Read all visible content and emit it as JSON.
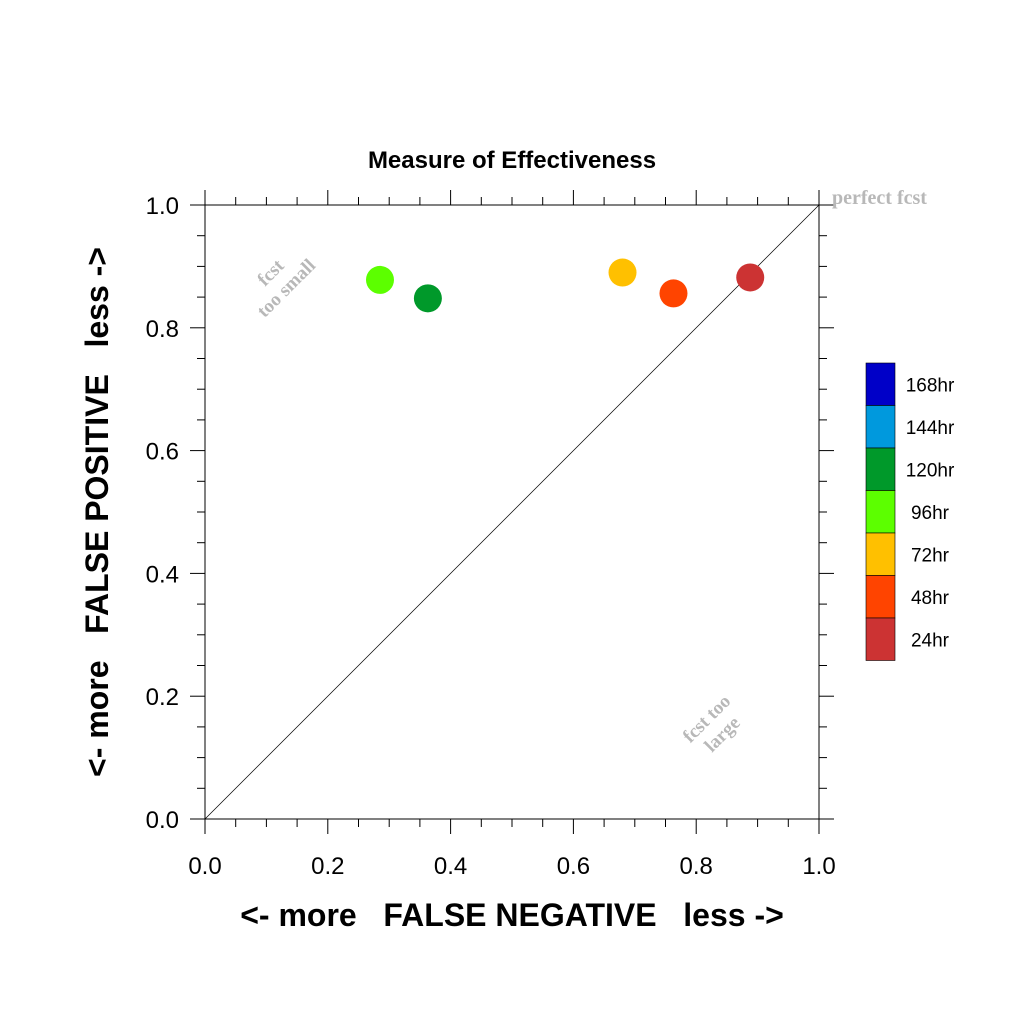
{
  "chart_data": {
    "type": "scatter",
    "title": "Measure of Effectiveness",
    "xlabel": "<- more   FALSE NEGATIVE   less ->",
    "ylabel": "<- more   FALSE POSITIVE   less ->",
    "xlim": [
      0,
      1
    ],
    "ylim": [
      0,
      1
    ],
    "x_ticks": [
      0.0,
      0.2,
      0.4,
      0.6,
      0.8,
      1.0
    ],
    "y_ticks": [
      0.0,
      0.2,
      0.4,
      0.6,
      0.8,
      1.0
    ],
    "x_tick_labels": [
      "0.0",
      "0.2",
      "0.4",
      "0.6",
      "0.8",
      "1.0"
    ],
    "y_tick_labels": [
      "0.0",
      "0.2",
      "0.4",
      "0.6",
      "0.8",
      "1.0"
    ],
    "grid": false,
    "diagonal_reference_line": true,
    "legend_position": "right",
    "legend": [
      {
        "label": "168hr",
        "color": "#0000c8"
      },
      {
        "label": "144hr",
        "color": "#0099dd"
      },
      {
        "label": "120hr",
        "color": "#00992a"
      },
      {
        "label": "96hr",
        "color": "#5cff00"
      },
      {
        "label": "72hr",
        "color": "#ffc000"
      },
      {
        "label": "48hr",
        "color": "#ff4400"
      },
      {
        "label": "24hr",
        "color": "#cc3333"
      }
    ],
    "points": [
      {
        "series": "96hr",
        "x": 0.285,
        "y": 0.878,
        "color": "#5cff00"
      },
      {
        "series": "120hr",
        "x": 0.363,
        "y": 0.848,
        "color": "#00992a"
      },
      {
        "series": "72hr",
        "x": 0.68,
        "y": 0.89,
        "color": "#ffc000"
      },
      {
        "series": "48hr",
        "x": 0.763,
        "y": 0.856,
        "color": "#ff4400"
      },
      {
        "series": "24hr",
        "x": 0.888,
        "y": 0.882,
        "color": "#cc3333"
      }
    ],
    "annotations": {
      "perfect": "perfect fcst",
      "too_small_1": "fcst",
      "too_small_2": "too small",
      "too_large_1": "fcst too",
      "too_large_2": "large"
    },
    "annotation_color": "#b8b8b8"
  }
}
